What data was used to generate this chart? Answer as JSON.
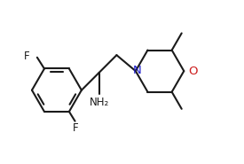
{
  "background_color": "#ffffff",
  "line_color": "#1a1a1a",
  "N_color": "#1a1acc",
  "O_color": "#cc1a1a",
  "line_width": 1.5,
  "font_size": 8.5,
  "figsize": [
    2.75,
    1.85
  ],
  "dpi": 100,
  "xlim": [
    -0.85,
    2.85
  ],
  "ylim": [
    -1.0,
    1.35
  ]
}
